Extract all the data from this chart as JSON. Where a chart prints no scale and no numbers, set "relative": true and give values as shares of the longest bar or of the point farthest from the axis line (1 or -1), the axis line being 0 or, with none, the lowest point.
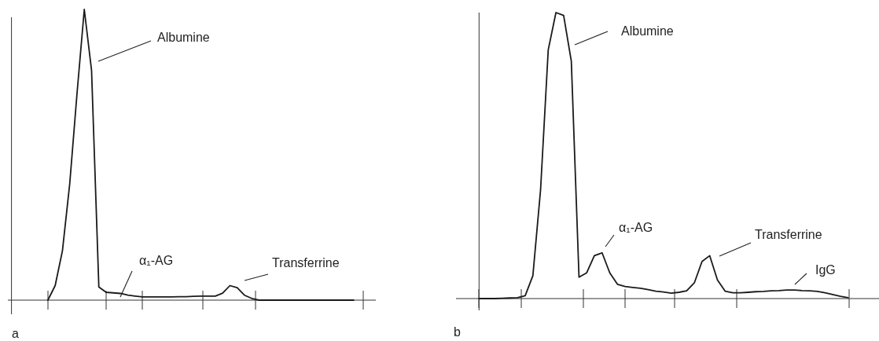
{
  "chart_data": [
    {
      "type": "line",
      "relative": true,
      "color": "#1a1a1a",
      "line_style": "solid",
      "categories": [
        null,
        null,
        null,
        null,
        null,
        null,
        null,
        null,
        null,
        null,
        null,
        null,
        null,
        null,
        null,
        null,
        null,
        null,
        null,
        null,
        null,
        null,
        null,
        null,
        null,
        null,
        null,
        null,
        null,
        null,
        null,
        null,
        null,
        null,
        null,
        null,
        null,
        null,
        null,
        null,
        null,
        null,
        null,
        null,
        null,
        null,
        null,
        null,
        null,
        null
      ],
      "values": [
        null,
        null,
        null,
        null,
        null,
        0,
        0.05,
        0.17,
        0.4,
        0.71,
        1,
        0.79,
        0.045,
        0.027,
        0.025,
        0.023,
        0.017,
        0.014,
        0.011,
        0.011,
        0.011,
        0.011,
        0.011,
        0.012,
        0.012,
        0.013,
        0.014,
        0.014,
        0.014,
        0.024,
        0.05,
        0.043,
        0.017,
        0.006,
        0,
        0,
        0,
        0,
        0,
        0,
        0,
        0,
        0,
        0,
        0,
        0,
        0,
        0,
        null,
        null
      ],
      "annotations": [
        "Albumine",
        "α₁-AG",
        "Transferrine",
        "a"
      ]
    },
    {
      "type": "line",
      "relative": true,
      "color": "#1a1a1a",
      "line_style": "solid",
      "categories": [
        null,
        null,
        null,
        null,
        null,
        null,
        null,
        null,
        null,
        null,
        null,
        null,
        null,
        null,
        null,
        null,
        null,
        null,
        null,
        null,
        null,
        null,
        null,
        null,
        null,
        null,
        null,
        null,
        null,
        null,
        null,
        null,
        null,
        null,
        null,
        null,
        null,
        null,
        null,
        null,
        null,
        null,
        null,
        null,
        null,
        null,
        null,
        null,
        null
      ],
      "values": [
        0,
        0,
        0,
        0.001,
        0.002,
        0.003,
        0.01,
        0.08,
        0.38,
        0.87,
        1,
        0.99,
        0.83,
        0.075,
        0.09,
        0.15,
        0.16,
        0.09,
        0.05,
        0.042,
        0.039,
        0.036,
        0.031,
        0.026,
        0.023,
        0.019,
        0.022,
        0.027,
        0.055,
        0.13,
        0.15,
        0.065,
        0.026,
        0.02,
        0.02,
        0.022,
        0.024,
        0.025,
        0.027,
        0.028,
        0.03,
        0.03,
        0.028,
        0.027,
        0.025,
        0.02,
        0.014,
        0.008,
        0.003
      ],
      "annotations": [
        "Albumine",
        "α₁-AG",
        "Transferrine",
        "IgG",
        "b"
      ]
    }
  ]
}
